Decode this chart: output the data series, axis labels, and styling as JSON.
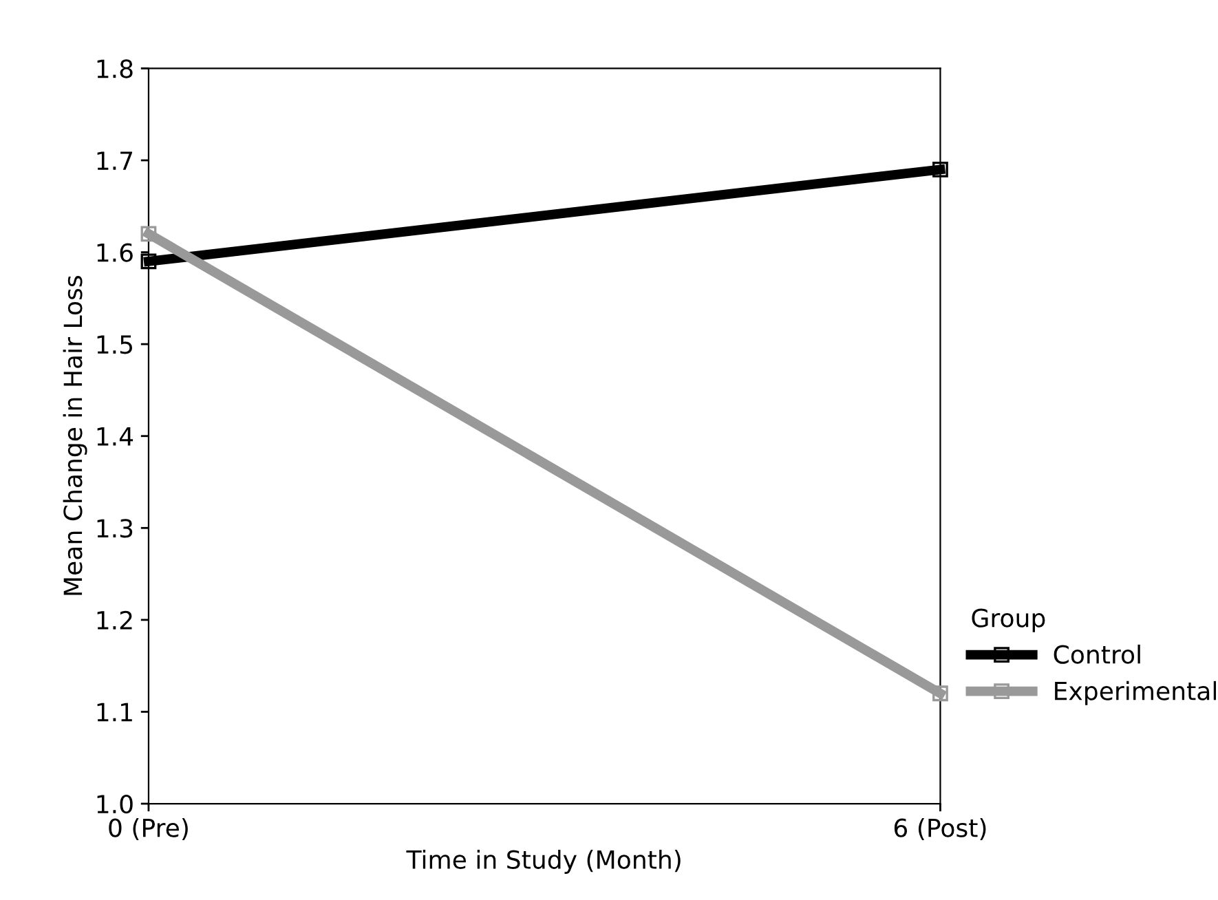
{
  "chart_data": {
    "type": "line",
    "xlabel": "Time in Study (Month)",
    "ylabel": "Mean Change in Hair Loss",
    "x": [
      0,
      6
    ],
    "xlim": [
      0,
      6
    ],
    "xticks": [
      {
        "value": 0,
        "label": "0 (Pre)"
      },
      {
        "value": 6,
        "label": "6 (Post)"
      }
    ],
    "series": [
      {
        "name": "Control",
        "color": "#000000",
        "values": [
          1.59,
          1.69
        ]
      },
      {
        "name": "Experimental",
        "color": "#999999",
        "values": [
          1.62,
          1.12
        ]
      }
    ],
    "ylim": [
      1.0,
      1.8
    ],
    "yticks": [
      {
        "value": 1.0,
        "label": "1.0"
      },
      1.1,
      1.2,
      1.3,
      1.4,
      1.5,
      1.6,
      1.7,
      1.8
    ],
    "grid": false,
    "legend": "right",
    "legend_title": "Group",
    "marker": "square",
    "line_style": "solid"
  }
}
